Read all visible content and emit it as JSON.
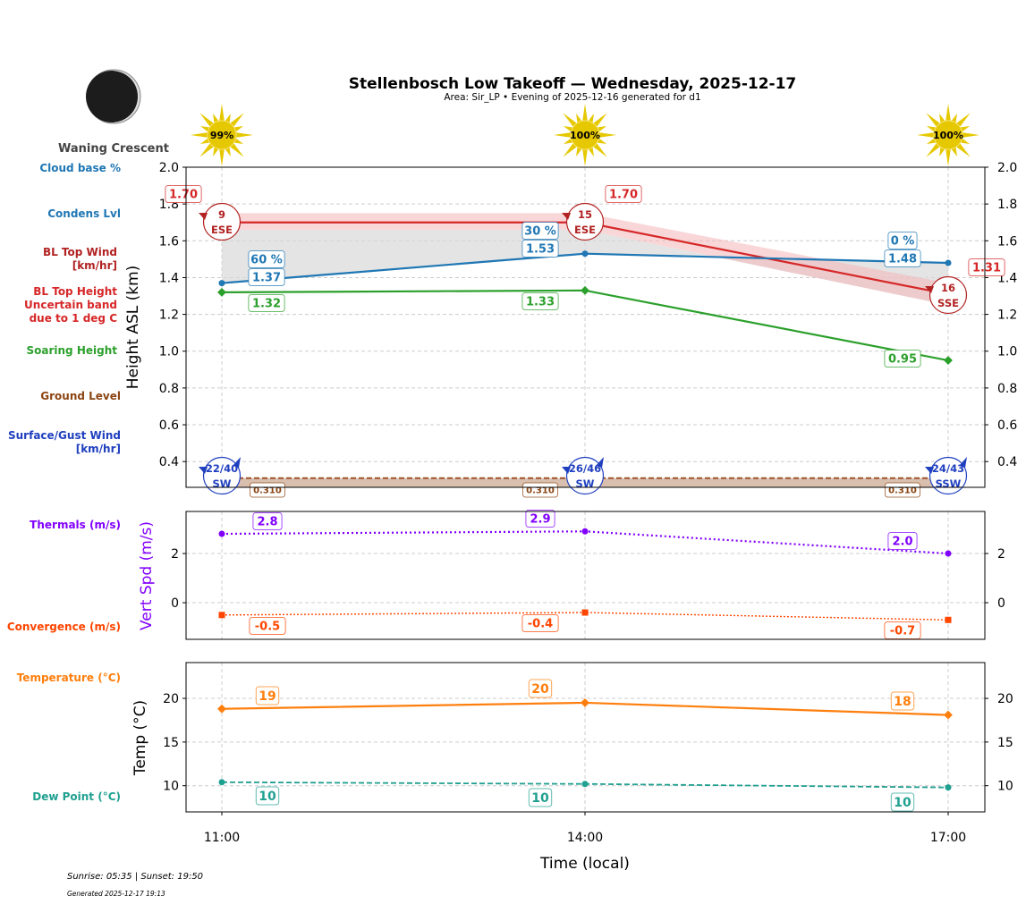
{
  "header": {
    "title": "Stellenbosch Low Takeoff — Wednesday, 2025-12-17",
    "subtitle": "Area: Sir_LP • Evening of 2025-12-16 generated for d1",
    "moon_phase": "Waning Crescent"
  },
  "side_labels": {
    "cloud_base": "Cloud base %",
    "condens": "Condens Lvl",
    "bl_wind": "BL Top Wind\n[km/hr]",
    "bl_top": "BL Top Height\nUncertain band\ndue to 1 deg C",
    "soaring": "Soaring Height",
    "ground": "Ground Level",
    "surface_wind": "Surface/Gust Wind\n[km/hr]",
    "thermals": "Thermals (m/s)",
    "convergence": "Convergence (m/s)",
    "temperature": "Temperature (°C)",
    "dew_point": "Dew Point (°C)"
  },
  "footer": {
    "sun": "Sunrise: 05:35 | Sunset: 19:50",
    "generated": "Generated 2025-12-17 19:13"
  },
  "colors": {
    "cloud": "#1f77b4",
    "bl_top": "#d62728",
    "bl_wind": "#b22222",
    "soaring": "#2ca02c",
    "ground": "#8b4513",
    "surface_wind": "#1f3fbf",
    "thermals": "#8000ff",
    "convergence": "#ff4500",
    "temperature": "#ff7f0e",
    "dew_point": "#20a090"
  },
  "chart_data": [
    {
      "type": "line",
      "ylabel": "Height ASL (km)",
      "x": [
        "11:00",
        "14:00",
        "17:00"
      ],
      "ylim": [
        0.26,
        2.0
      ],
      "yticks": [
        "0.4",
        "0.6",
        "0.8",
        "1.0",
        "1.2",
        "1.4",
        "1.6",
        "1.8",
        "2.0"
      ],
      "grid": true,
      "sun_percent": [
        "99%",
        "100%",
        "100%"
      ],
      "series": {
        "bl_top": {
          "values": [
            1.7,
            1.7,
            1.31
          ],
          "band": [
            [
              1.66,
              1.75
            ],
            [
              1.66,
              1.75
            ],
            [
              1.25,
              1.37
            ]
          ],
          "labels": [
            "1.70",
            "1.70",
            "1.31"
          ]
        },
        "condens": {
          "values": [
            1.37,
            1.53,
            1.48
          ],
          "labels": [
            "1.37",
            "1.53",
            "1.48"
          ]
        },
        "cloud_pct": [
          "60 %",
          "30 %",
          "0 %"
        ],
        "soaring": {
          "values": [
            1.32,
            1.33,
            0.95
          ],
          "labels": [
            "1.32",
            "1.33",
            "0.95"
          ]
        },
        "ground": {
          "values": [
            0.31,
            0.31,
            0.31
          ],
          "labels": [
            "0.310",
            "0.310",
            "0.310"
          ]
        },
        "bl_wind": [
          {
            "speed": "9",
            "dir": "ESE"
          },
          {
            "speed": "15",
            "dir": "ESE"
          },
          {
            "speed": "16",
            "dir": "SSE"
          }
        ],
        "surface_wind": [
          {
            "speed": "22/40",
            "dir": "SW"
          },
          {
            "speed": "26/46",
            "dir": "SW"
          },
          {
            "speed": "24/43",
            "dir": "SSW"
          }
        ]
      }
    },
    {
      "type": "line",
      "ylabel": "Vert Spd (m/s)",
      "x": [
        "11:00",
        "14:00",
        "17:00"
      ],
      "ylim": [
        -1.49,
        3.71
      ],
      "yticks": [
        "0",
        "2"
      ],
      "series": {
        "thermals": {
          "values": [
            2.8,
            2.9,
            2.0
          ],
          "labels": [
            "2.8",
            "2.9",
            "2.0"
          ]
        },
        "convergence": {
          "values": [
            -0.5,
            -0.4,
            -0.7
          ],
          "labels": [
            "-0.5",
            "-0.4",
            "-0.7"
          ]
        }
      }
    },
    {
      "type": "line",
      "ylabel": "Temp (°C)",
      "xlabel": "Time (local)",
      "x": [
        "11:00",
        "14:00",
        "17:00"
      ],
      "ylim": [
        7.0,
        24.1
      ],
      "yticks": [
        "10",
        "15",
        "20"
      ],
      "series": {
        "temperature": {
          "values": [
            18.8,
            19.5,
            18.1
          ],
          "labels": [
            "19",
            "20",
            "18"
          ]
        },
        "dew_point": {
          "values": [
            10.4,
            10.2,
            9.8
          ],
          "labels": [
            "10",
            "10",
            "10"
          ]
        }
      }
    }
  ]
}
